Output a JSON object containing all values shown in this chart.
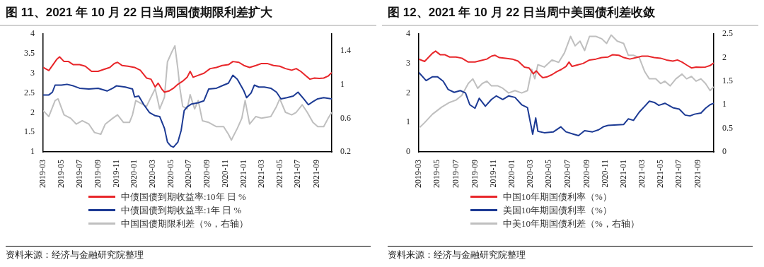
{
  "chart_data": [
    {
      "type": "line",
      "title": "图 11、2021 年 10 月 22 日当周国债期限利差扩大",
      "legend": "bottom",
      "grid": false,
      "marker": "none",
      "line_style": "solid",
      "xlim": [
        "2019-03-01",
        "2021-10-22"
      ],
      "xticks": [
        "2019-03",
        "2019-05",
        "2019-07",
        "2019-09",
        "2019-11",
        "2020-01",
        "2020-03",
        "2020-05",
        "2020-07",
        "2020-09",
        "2020-11",
        "2021-01",
        "2021-03",
        "2021-05",
        "2021-07",
        "2021-09"
      ],
      "ylim": [
        1,
        4
      ],
      "yticks": [
        1,
        1.5,
        2,
        2.5,
        3,
        3.5,
        4
      ],
      "y2lim": [
        0.2,
        1.6
      ],
      "y2ticks": [
        0.2,
        0.6,
        1,
        1.4
      ],
      "annotations": [
        "资料来源：经济与金融研究院整理"
      ],
      "series": [
        {
          "name": "中债国债到期收益率:10年 日 %",
          "color": "#e8262a",
          "x": [
            "2019-03-01",
            "2019-03-20",
            "2019-04-15",
            "2019-04-25",
            "2019-05-10",
            "2019-05-25",
            "2019-06-10",
            "2019-07-01",
            "2019-07-20",
            "2019-08-10",
            "2019-09-01",
            "2019-09-20",
            "2019-10-10",
            "2019-10-25",
            "2019-11-05",
            "2019-11-20",
            "2019-12-10",
            "2020-01-01",
            "2020-01-20",
            "2020-02-10",
            "2020-02-25",
            "2020-03-10",
            "2020-03-20",
            "2020-04-01",
            "2020-04-10",
            "2020-04-25",
            "2020-05-10",
            "2020-05-25",
            "2020-06-10",
            "2020-06-25",
            "2020-07-05",
            "2020-07-15",
            "2020-08-01",
            "2020-08-20",
            "2020-09-10",
            "2020-10-01",
            "2020-10-20",
            "2020-11-10",
            "2020-11-25",
            "2020-12-15",
            "2021-01-01",
            "2021-01-20",
            "2021-02-10",
            "2021-03-01",
            "2021-03-20",
            "2021-04-10",
            "2021-05-01",
            "2021-05-20",
            "2021-06-10",
            "2021-06-25",
            "2021-07-10",
            "2021-07-25",
            "2021-08-10",
            "2021-08-25",
            "2021-09-10",
            "2021-09-25",
            "2021-10-10",
            "2021-10-22"
          ],
          "values": [
            3.15,
            3.07,
            3.35,
            3.42,
            3.3,
            3.3,
            3.22,
            3.22,
            3.18,
            3.05,
            3.05,
            3.1,
            3.15,
            3.25,
            3.28,
            3.2,
            3.18,
            3.15,
            3.08,
            2.88,
            2.85,
            2.65,
            2.75,
            2.6,
            2.52,
            2.55,
            2.62,
            2.72,
            2.8,
            2.9,
            3.05,
            2.9,
            2.95,
            3.0,
            3.12,
            3.15,
            3.2,
            3.22,
            3.3,
            3.28,
            3.2,
            3.15,
            3.2,
            3.25,
            3.25,
            3.2,
            3.18,
            3.12,
            3.08,
            3.12,
            3.05,
            2.95,
            2.85,
            2.88,
            2.87,
            2.88,
            2.93,
            3.02
          ]
        },
        {
          "name": "中债国债到期收益率:1年 日 %",
          "color": "#1c3a94",
          "x": [
            "2019-03-01",
            "2019-03-20",
            "2019-04-01",
            "2019-04-10",
            "2019-05-01",
            "2019-05-20",
            "2019-06-10",
            "2019-07-01",
            "2019-08-01",
            "2019-09-01",
            "2019-10-01",
            "2019-10-20",
            "2019-11-01",
            "2019-12-01",
            "2019-12-25",
            "2020-01-01",
            "2020-01-15",
            "2020-02-01",
            "2020-02-20",
            "2020-03-10",
            "2020-03-25",
            "2020-04-10",
            "2020-04-20",
            "2020-05-01",
            "2020-05-10",
            "2020-05-25",
            "2020-06-05",
            "2020-06-15",
            "2020-06-25",
            "2020-07-10",
            "2020-08-01",
            "2020-08-20",
            "2020-09-05",
            "2020-10-01",
            "2020-10-25",
            "2020-11-10",
            "2020-11-25",
            "2020-12-10",
            "2021-01-01",
            "2021-01-10",
            "2021-01-25",
            "2021-02-05",
            "2021-02-20",
            "2021-03-10",
            "2021-04-01",
            "2021-04-20",
            "2021-05-05",
            "2021-05-25",
            "2021-06-15",
            "2021-07-01",
            "2021-07-20",
            "2021-08-05",
            "2021-08-20",
            "2021-09-05",
            "2021-09-25",
            "2021-10-22"
          ],
          "values": [
            2.45,
            2.45,
            2.52,
            2.7,
            2.7,
            2.72,
            2.68,
            2.62,
            2.6,
            2.62,
            2.55,
            2.62,
            2.68,
            2.65,
            2.6,
            2.4,
            2.42,
            2.2,
            2.0,
            1.92,
            1.9,
            1.6,
            1.25,
            1.15,
            1.12,
            1.25,
            1.55,
            2.05,
            2.15,
            2.22,
            2.25,
            2.3,
            2.6,
            2.62,
            2.7,
            2.75,
            2.95,
            2.85,
            2.55,
            2.38,
            2.5,
            2.7,
            2.65,
            2.65,
            2.62,
            2.52,
            2.35,
            2.38,
            2.42,
            2.52,
            2.35,
            2.2,
            2.28,
            2.35,
            2.38,
            2.35
          ]
        },
        {
          "name": "中国国债期限利差（%，右轴）",
          "color": "#bfbfbf",
          "axis": "y2",
          "x": [
            "2019-03-01",
            "2019-03-20",
            "2019-04-10",
            "2019-04-20",
            "2019-05-10",
            "2019-06-01",
            "2019-06-20",
            "2019-07-10",
            "2019-08-01",
            "2019-08-20",
            "2019-09-10",
            "2019-09-25",
            "2019-10-20",
            "2019-11-05",
            "2019-11-25",
            "2019-12-15",
            "2019-12-25",
            "2020-01-05",
            "2020-01-20",
            "2020-02-10",
            "2020-02-25",
            "2020-03-10",
            "2020-03-25",
            "2020-04-10",
            "2020-04-20",
            "2020-05-05",
            "2020-05-15",
            "2020-05-25",
            "2020-06-01",
            "2020-06-10",
            "2020-06-25",
            "2020-07-05",
            "2020-07-20",
            "2020-08-01",
            "2020-08-15",
            "2020-09-05",
            "2020-10-01",
            "2020-10-25",
            "2020-11-10",
            "2020-11-20",
            "2020-12-10",
            "2020-12-25",
            "2021-01-05",
            "2021-01-20",
            "2021-02-10",
            "2021-03-01",
            "2021-04-01",
            "2021-04-20",
            "2021-05-01",
            "2021-05-20",
            "2021-06-10",
            "2021-06-25",
            "2021-07-15",
            "2021-08-01",
            "2021-08-20",
            "2021-09-05",
            "2021-09-25",
            "2021-10-10",
            "2021-10-22"
          ],
          "values": [
            0.69,
            0.62,
            0.81,
            0.83,
            0.64,
            0.6,
            0.53,
            0.57,
            0.53,
            0.43,
            0.41,
            0.53,
            0.6,
            0.64,
            0.55,
            0.55,
            0.64,
            0.81,
            0.78,
            0.74,
            0.85,
            0.95,
            0.71,
            0.85,
            1.27,
            1.39,
            1.46,
            1.18,
            0.95,
            0.74,
            0.71,
            0.88,
            0.71,
            0.81,
            0.57,
            0.55,
            0.5,
            0.5,
            0.41,
            0.34,
            0.48,
            0.6,
            0.81,
            0.53,
            0.62,
            0.6,
            0.62,
            0.74,
            0.83,
            0.67,
            0.64,
            0.67,
            0.76,
            0.67,
            0.55,
            0.5,
            0.5,
            0.6,
            0.67
          ]
        }
      ]
    },
    {
      "type": "line",
      "title": "图 12、2021 年 10 月 22 日当周中美国债利差收敛",
      "legend": "bottom",
      "grid": false,
      "marker": "none",
      "line_style": "solid",
      "xlim": [
        "2019-03-01",
        "2021-10-22"
      ],
      "xticks": [
        "2019-03",
        "2019-05",
        "2019-07",
        "2019-09",
        "2019-11",
        "2020-01",
        "2020-03",
        "2020-05",
        "2020-07",
        "2020-09",
        "2020-11",
        "2021-01",
        "2021-03",
        "2021-05",
        "2021-07",
        "2021-09"
      ],
      "ylim": [
        0,
        4
      ],
      "yticks": [
        0,
        1,
        2,
        3,
        4
      ],
      "y2lim": [
        0,
        2.5
      ],
      "y2ticks": [
        0,
        0.5,
        1,
        1.5,
        2,
        2.5
      ],
      "annotations": [
        "资料来源：经济与金融研究院整理"
      ],
      "series": [
        {
          "name": "中国10年期国债利率（%）",
          "color": "#e8262a",
          "x": [
            "2019-03-01",
            "2019-03-20",
            "2019-04-15",
            "2019-04-25",
            "2019-05-10",
            "2019-05-25",
            "2019-06-10",
            "2019-07-01",
            "2019-07-20",
            "2019-08-10",
            "2019-09-01",
            "2019-09-20",
            "2019-10-10",
            "2019-10-25",
            "2019-11-05",
            "2019-11-20",
            "2019-12-10",
            "2020-01-01",
            "2020-01-20",
            "2020-02-10",
            "2020-02-25",
            "2020-03-10",
            "2020-03-20",
            "2020-04-01",
            "2020-04-10",
            "2020-04-25",
            "2020-05-10",
            "2020-05-25",
            "2020-06-10",
            "2020-06-25",
            "2020-07-05",
            "2020-07-15",
            "2020-08-01",
            "2020-08-20",
            "2020-09-10",
            "2020-10-01",
            "2020-10-20",
            "2020-11-10",
            "2020-11-25",
            "2020-12-15",
            "2021-01-01",
            "2021-01-20",
            "2021-02-10",
            "2021-03-01",
            "2021-03-20",
            "2021-04-10",
            "2021-05-01",
            "2021-05-20",
            "2021-06-10",
            "2021-06-25",
            "2021-07-10",
            "2021-07-25",
            "2021-08-10",
            "2021-08-25",
            "2021-09-10",
            "2021-09-25",
            "2021-10-10",
            "2021-10-22"
          ],
          "values": [
            3.15,
            3.07,
            3.35,
            3.42,
            3.3,
            3.3,
            3.22,
            3.22,
            3.18,
            3.05,
            3.05,
            3.1,
            3.15,
            3.25,
            3.28,
            3.2,
            3.18,
            3.15,
            3.08,
            2.88,
            2.85,
            2.65,
            2.75,
            2.6,
            2.52,
            2.55,
            2.62,
            2.72,
            2.8,
            2.9,
            3.05,
            2.9,
            2.95,
            3.0,
            3.12,
            3.15,
            3.2,
            3.22,
            3.3,
            3.28,
            3.2,
            3.15,
            3.2,
            3.25,
            3.25,
            3.2,
            3.18,
            3.12,
            3.08,
            3.12,
            3.05,
            2.95,
            2.85,
            2.88,
            2.87,
            2.88,
            2.93,
            3.02
          ]
        },
        {
          "name": "美国10年期国债利率（%）",
          "color": "#1c3a94",
          "x": [
            "2019-03-01",
            "2019-03-25",
            "2019-04-15",
            "2019-05-01",
            "2019-05-20",
            "2019-06-05",
            "2019-06-25",
            "2019-07-15",
            "2019-08-01",
            "2019-08-15",
            "2019-09-01",
            "2019-09-15",
            "2019-10-05",
            "2019-10-25",
            "2019-11-10",
            "2019-12-01",
            "2019-12-20",
            "2020-01-10",
            "2020-02-01",
            "2020-02-20",
            "2020-03-08",
            "2020-03-18",
            "2020-03-25",
            "2020-04-15",
            "2020-05-15",
            "2020-06-08",
            "2020-06-25",
            "2020-07-20",
            "2020-08-05",
            "2020-08-25",
            "2020-09-20",
            "2020-10-10",
            "2020-10-25",
            "2020-11-10",
            "2020-12-10",
            "2020-12-31",
            "2021-01-15",
            "2021-02-01",
            "2021-02-20",
            "2021-03-10",
            "2021-03-25",
            "2021-04-10",
            "2021-04-25",
            "2021-05-15",
            "2021-06-10",
            "2021-07-01",
            "2021-07-20",
            "2021-08-05",
            "2021-08-20",
            "2021-09-10",
            "2021-09-25",
            "2021-10-10",
            "2021-10-22"
          ],
          "values": [
            2.7,
            2.42,
            2.55,
            2.55,
            2.4,
            2.12,
            2.02,
            2.08,
            2.0,
            1.6,
            1.48,
            1.82,
            1.55,
            1.78,
            1.9,
            1.78,
            1.9,
            1.85,
            1.6,
            1.5,
            0.6,
            1.15,
            0.7,
            0.65,
            0.68,
            0.85,
            0.68,
            0.6,
            0.55,
            0.72,
            0.68,
            0.75,
            0.85,
            0.9,
            0.92,
            0.93,
            1.12,
            1.07,
            1.35,
            1.55,
            1.72,
            1.68,
            1.58,
            1.65,
            1.5,
            1.45,
            1.25,
            1.22,
            1.28,
            1.32,
            1.48,
            1.6,
            1.65
          ]
        },
        {
          "name": "中美10年期国债利差（%，右轴）",
          "color": "#bfbfbf",
          "axis": "y2",
          "x": [
            "2019-03-01",
            "2019-03-20",
            "2019-04-15",
            "2019-05-15",
            "2019-06-10",
            "2019-07-01",
            "2019-07-20",
            "2019-08-10",
            "2019-08-25",
            "2019-09-10",
            "2019-09-25",
            "2019-10-10",
            "2019-10-25",
            "2019-11-15",
            "2019-12-01",
            "2019-12-20",
            "2020-01-10",
            "2020-02-01",
            "2020-02-20",
            "2020-03-05",
            "2020-03-15",
            "2020-03-25",
            "2020-04-15",
            "2020-05-10",
            "2020-06-01",
            "2020-06-20",
            "2020-07-10",
            "2020-07-25",
            "2020-08-10",
            "2020-08-25",
            "2020-09-10",
            "2020-10-01",
            "2020-10-20",
            "2020-11-05",
            "2020-11-20",
            "2020-12-10",
            "2020-12-31",
            "2021-01-15",
            "2021-02-01",
            "2021-02-20",
            "2021-03-10",
            "2021-03-25",
            "2021-04-15",
            "2021-05-01",
            "2021-05-15",
            "2021-06-01",
            "2021-06-20",
            "2021-07-10",
            "2021-07-25",
            "2021-08-10",
            "2021-08-25",
            "2021-09-10",
            "2021-09-25",
            "2021-10-10",
            "2021-10-22"
          ],
          "values": [
            0.5,
            0.62,
            0.8,
            0.95,
            1.05,
            1.1,
            1.2,
            1.45,
            1.55,
            1.35,
            1.45,
            1.5,
            1.4,
            1.4,
            1.35,
            1.25,
            1.3,
            1.25,
            1.3,
            1.75,
            1.55,
            1.85,
            1.8,
            1.95,
            1.9,
            2.1,
            2.45,
            2.25,
            2.35,
            2.15,
            2.45,
            2.45,
            2.4,
            2.3,
            2.48,
            2.35,
            2.3,
            2.05,
            2.05,
            2.0,
            1.7,
            1.55,
            1.55,
            1.45,
            1.5,
            1.4,
            1.55,
            1.65,
            1.55,
            1.6,
            1.5,
            1.55,
            1.45,
            1.3,
            1.38
          ]
        }
      ]
    }
  ]
}
